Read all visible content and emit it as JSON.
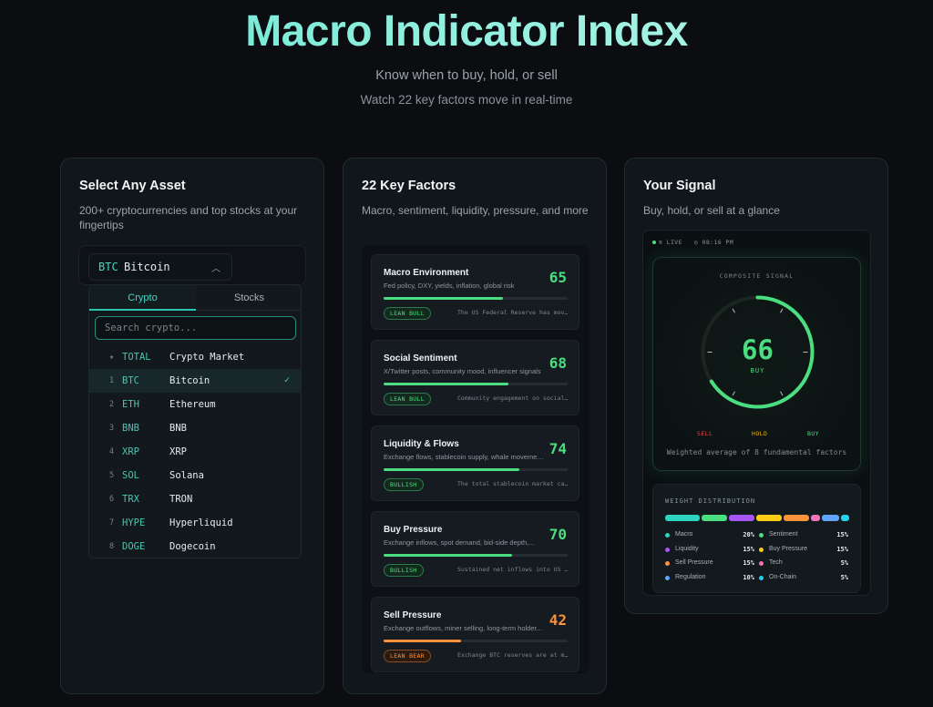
{
  "hero": {
    "title": "Macro Indicator Index",
    "subtitle": "Know when to buy, hold, or sell",
    "tagline": "Watch 22 key factors move in real-time"
  },
  "asset_card": {
    "title": "Select Any Asset",
    "description": "200+ cryptocurrencies and top stocks at your fingertips",
    "selected": {
      "ticker": "BTC",
      "name": "Bitcoin",
      "chevron": "chevron-up-icon"
    },
    "tabs": [
      "Crypto",
      "Stocks"
    ],
    "active_tab": "Crypto",
    "search_placeholder": "Search crypto...",
    "assets": [
      {
        "rank": "★",
        "ticker": "TOTAL",
        "name": "Crypto Market",
        "selected": false
      },
      {
        "rank": "1",
        "ticker": "BTC",
        "name": "Bitcoin",
        "selected": true,
        "check": "✓"
      },
      {
        "rank": "2",
        "ticker": "ETH",
        "name": "Ethereum",
        "selected": false
      },
      {
        "rank": "3",
        "ticker": "BNB",
        "name": "BNB",
        "selected": false
      },
      {
        "rank": "4",
        "ticker": "XRP",
        "name": "XRP",
        "selected": false
      },
      {
        "rank": "5",
        "ticker": "SOL",
        "name": "Solana",
        "selected": false
      },
      {
        "rank": "6",
        "ticker": "TRX",
        "name": "TRON",
        "selected": false
      },
      {
        "rank": "7",
        "ticker": "HYPE",
        "name": "Hyperliquid",
        "selected": false
      },
      {
        "rank": "8",
        "ticker": "DOGE",
        "name": "Dogecoin",
        "selected": false
      }
    ]
  },
  "factors_card": {
    "title": "22 Key Factors",
    "description": "Macro, sentiment, liquidity, pressure, and more",
    "factors": [
      {
        "name": "Macro Environment",
        "description": "Fed policy, DXY, yields, inflation, global risk",
        "value": "65",
        "badge": "LEAN BULL",
        "tone": "green",
        "note": "The US Federal Reserve has mov..."
      },
      {
        "name": "Social Sentiment",
        "description": "X/Twitter posts, community mood, influencer signals",
        "value": "68",
        "badge": "LEAN BULL",
        "tone": "green",
        "note": "Community engagement on social..."
      },
      {
        "name": "Liquidity & Flows",
        "description": "Exchange flows, stablecoin supply, whale movements",
        "value": "74",
        "badge": "BULLISH",
        "tone": "green",
        "note": "The total stablecoin market ca..."
      },
      {
        "name": "Buy Pressure",
        "description": "Exchange inflows, spot demand, bid-side depth,...",
        "value": "70",
        "badge": "BULLISH",
        "tone": "green",
        "note": "Sustained net inflows into US ..."
      },
      {
        "name": "Sell Pressure",
        "description": "Exchange outflows, miner selling, long-term holder...",
        "value": "42",
        "badge": "LEAN BEAR",
        "tone": "orange",
        "note": "Exchange BTC reserves are at m..."
      }
    ]
  },
  "signal_card": {
    "title": "Your Signal",
    "description": "Buy, hold, or sell at a glance",
    "status": {
      "live": "LIVE",
      "time": "08:16 PM"
    },
    "composite_label": "COMPOSITE SIGNAL",
    "score": "66",
    "score_value": 66,
    "verdict": "BUY",
    "scale": {
      "sell": "SELL",
      "hold": "HOLD",
      "buy": "BUY"
    },
    "weighted_note": "Weighted average of 8 fundamental factors",
    "weights_title": "WEIGHT DISTRIBUTION",
    "weights": [
      {
        "label": "Macro",
        "pct": "20%",
        "value": 20,
        "color": "#2dd4bf"
      },
      {
        "label": "Sentiment",
        "pct": "15%",
        "value": 15,
        "color": "#4ade80"
      },
      {
        "label": "Liquidity",
        "pct": "15%",
        "value": 15,
        "color": "#a855f7"
      },
      {
        "label": "Buy Pressure",
        "pct": "15%",
        "value": 15,
        "color": "#facc15"
      },
      {
        "label": "Sell Pressure",
        "pct": "15%",
        "value": 15,
        "color": "#fb923c"
      },
      {
        "label": "Tech",
        "pct": "5%",
        "value": 5,
        "color": "#f472b6"
      },
      {
        "label": "Regulation",
        "pct": "10%",
        "value": 10,
        "color": "#60a5fa"
      },
      {
        "label": "On-Chain",
        "pct": "5%",
        "value": 5,
        "color": "#22d3ee"
      }
    ]
  },
  "colors": {
    "accent": "#2dd4bf",
    "green": "#4ade80",
    "orange": "#fb923c",
    "hold": "#eab308",
    "sell": "#ef4444"
  }
}
